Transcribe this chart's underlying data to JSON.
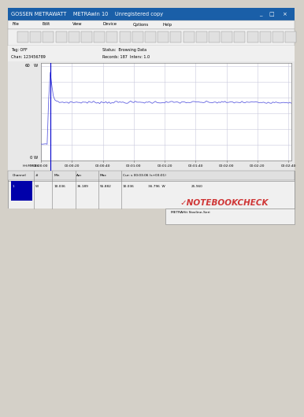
{
  "title_bar": "GOSSEN METRAWATT    METRAwin 10    Unregistered copy",
  "status_text": "Status:  Browsing Data",
  "records_text": "Records: 187  Interv: 1.0",
  "tag_text": "Tag: OFF",
  "chan_text": "Chan: 123456789",
  "y_max_label": "60",
  "y_unit_top": "W",
  "y_min_label": "0",
  "y_unit_bottom": "W",
  "x_labels": [
    "00:00:00",
    "00:00:20",
    "00:00:40",
    "00:01:00",
    "00:01:20",
    "00:01:40",
    "00:02:00",
    "00:02:20",
    "00:02:40"
  ],
  "hh_mm_ss_label": "HH:MM:SS",
  "spike_value": 56.0,
  "stable_value": 37.0,
  "min_value": 10.036,
  "avg_value": 36.189,
  "max_value": 55.882,
  "cur_time": "00:03:06",
  "cur_offset": "+03:01",
  "cur_val1": 10.036,
  "cur_val2": 36.796,
  "cur_unit": "W",
  "cur_val3": 25.96,
  "plot_bg": "#ffffff",
  "grid_color": "#c8c8dc",
  "line_color": "#6060e0",
  "win_bg": "#d4d0c8",
  "panel_bg": "#f0f0f0",
  "title_bg": "#1a5fa8",
  "table_bg": "#ffffff",
  "nb_check_color": "#cc2222"
}
